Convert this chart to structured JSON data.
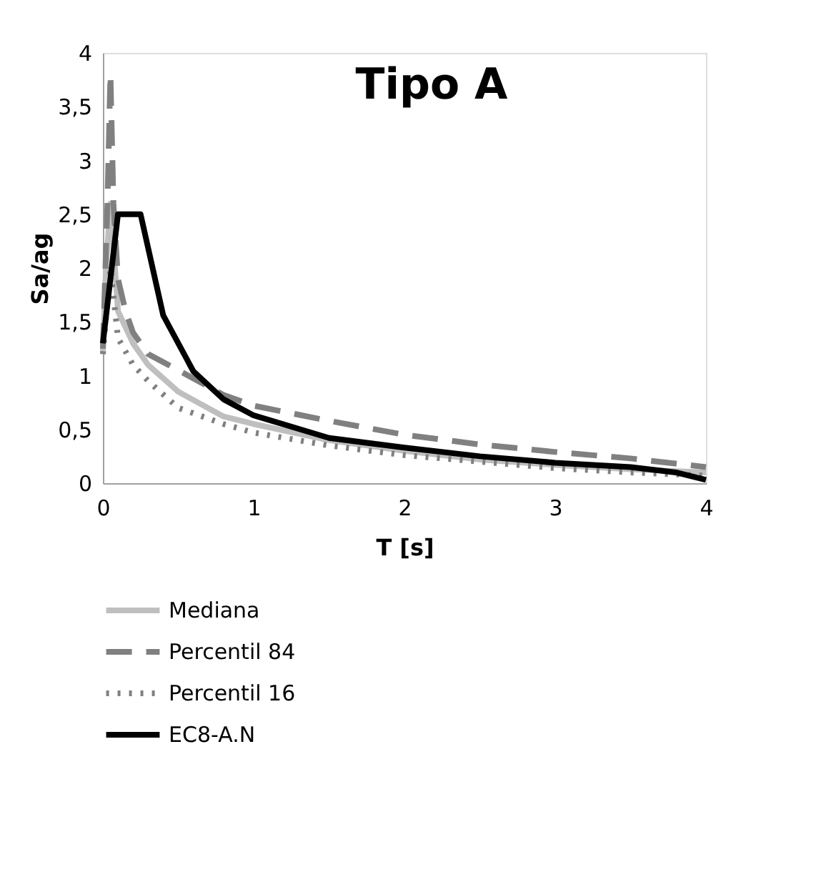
{
  "chart_data": {
    "type": "line",
    "title": "Tipo A",
    "xlabel": "T [s]",
    "ylabel": "Sa/ag",
    "xlim": [
      0,
      4
    ],
    "xticks": [
      0,
      1,
      2,
      3,
      4
    ],
    "ylim": [
      0,
      4
    ],
    "yticks": [
      0,
      {
        "value": 0.5,
        "label": "0,5"
      },
      1,
      {
        "value": 1.5,
        "label": "1,5"
      },
      2,
      {
        "value": 2.5,
        "label": "2,5"
      },
      3,
      {
        "value": 3.5,
        "label": "3,5"
      },
      4
    ],
    "grid": false,
    "legend": "bottom",
    "marker": "none",
    "series": [
      {
        "name": "Mediana",
        "color": "#bfbfbf",
        "line_style": "solid",
        "x": [
          0,
          0.02,
          0.05,
          0.1,
          0.2,
          0.3,
          0.5,
          0.8,
          1,
          1.5,
          2,
          2.5,
          3,
          3.5,
          4
        ],
        "values": [
          1.2,
          2.0,
          2.6,
          1.6,
          1.3,
          1.1,
          0.85,
          0.62,
          0.55,
          0.4,
          0.3,
          0.22,
          0.17,
          0.13,
          0.1
        ]
      },
      {
        "name": "Percentil 84",
        "color": "#808080",
        "line_style": "dashed",
        "x": [
          0,
          0.03,
          0.05,
          0.07,
          0.1,
          0.15,
          0.2,
          0.3,
          0.5,
          0.8,
          1,
          1.5,
          2,
          2.5,
          3,
          3.5,
          4
        ],
        "values": [
          1.25,
          2.6,
          3.8,
          2.6,
          1.9,
          1.6,
          1.4,
          1.2,
          1.05,
          0.82,
          0.72,
          0.58,
          0.45,
          0.36,
          0.29,
          0.23,
          0.15
        ]
      },
      {
        "name": "Percentil 16",
        "color": "#808080",
        "line_style": "dotted",
        "x": [
          0,
          0.05,
          0.1,
          0.2,
          0.3,
          0.5,
          0.8,
          1,
          1.5,
          2,
          2.5,
          3,
          3.5,
          4
        ],
        "values": [
          1.2,
          2.0,
          1.35,
          1.1,
          0.95,
          0.7,
          0.55,
          0.47,
          0.35,
          0.26,
          0.2,
          0.14,
          0.1,
          0.07
        ]
      },
      {
        "name": "EC8-A.N",
        "color": "#000000",
        "line_style": "solid",
        "x": [
          0,
          0.1,
          0.25,
          0.4,
          0.6,
          0.8,
          1,
          1.5,
          2,
          2.5,
          3,
          3.5,
          3.8,
          4
        ],
        "values": [
          1.3,
          2.5,
          2.5,
          1.56,
          1.04,
          0.78,
          0.63,
          0.42,
          0.33,
          0.25,
          0.19,
          0.15,
          0.1,
          0.03
        ]
      }
    ]
  }
}
